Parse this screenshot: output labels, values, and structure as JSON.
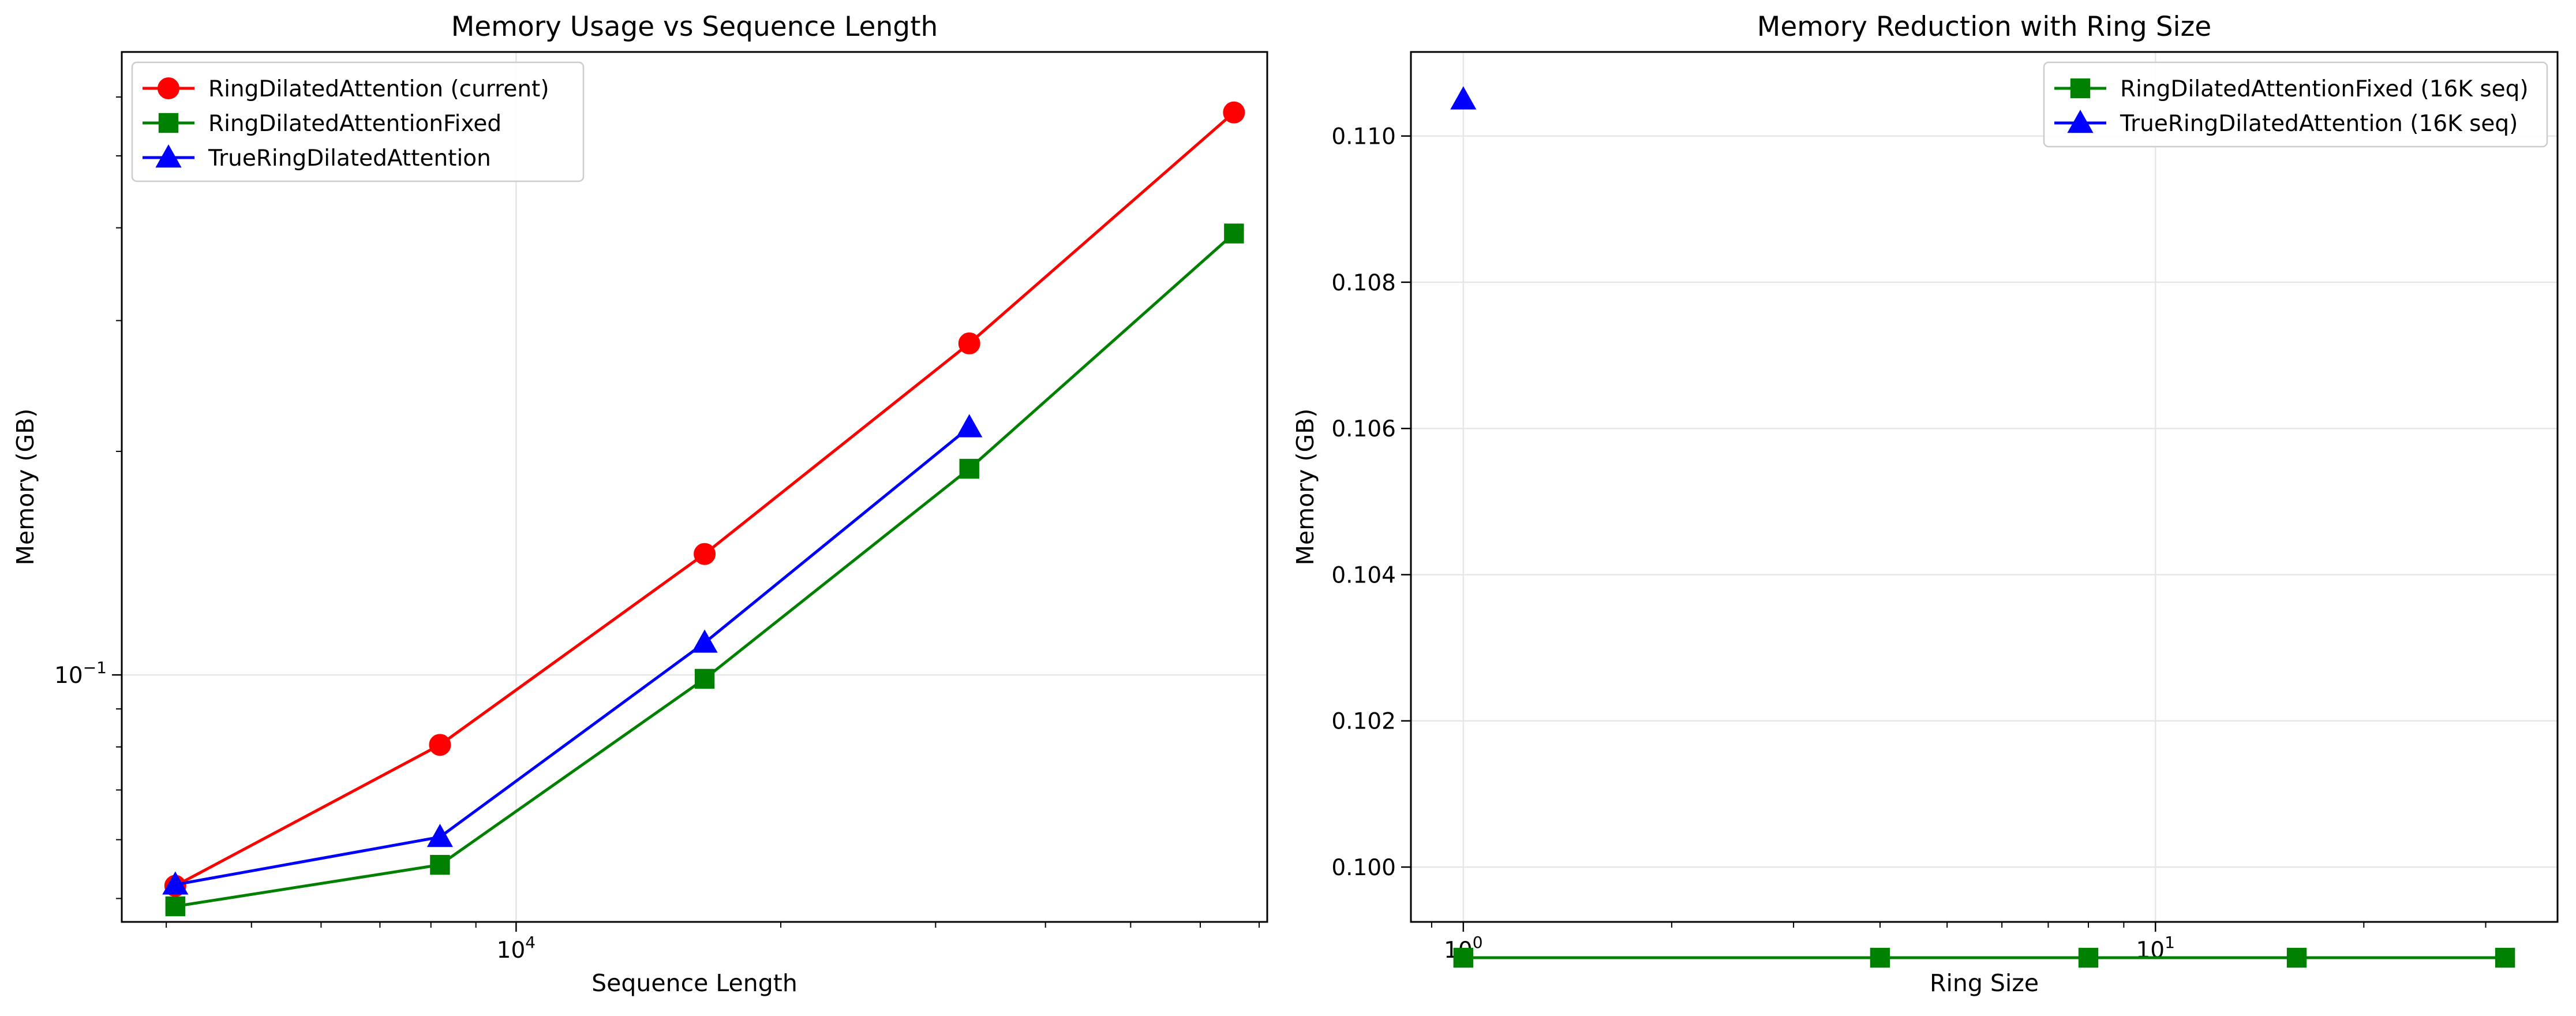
{
  "chart_data": [
    {
      "type": "line",
      "title": "Memory Usage vs Sequence Length",
      "xlabel": "Sequence Length",
      "ylabel": "Memory (GB)",
      "xscale": "log",
      "yscale": "log",
      "xlim": [
        3560,
        71500
      ],
      "ylim": [
        0.0465,
        0.69
      ],
      "xticks": [
        {
          "value": 10000,
          "label": "10",
          "exp": "4"
        }
      ],
      "yticks": [
        {
          "value": 0.1,
          "label": "10",
          "exp": "−1"
        }
      ],
      "grid": true,
      "legend_position": "upper left",
      "x": [
        4096,
        8192,
        16384,
        32768,
        65536
      ],
      "series": [
        {
          "name": "RingDilatedAttention (current)",
          "color": "#ff0000",
          "marker": "circle",
          "values": [
            0.052,
            0.0805,
            0.1455,
            0.2795,
            0.572
          ]
        },
        {
          "name": "RingDilatedAttentionFixed",
          "color": "#008000",
          "marker": "square",
          "values": [
            0.0488,
            0.0555,
            0.0988,
            0.1895,
            0.393
          ]
        },
        {
          "name": "TrueRingDilatedAttention",
          "color": "#0000ff",
          "marker": "triangle",
          "values": [
            0.0522,
            0.0605,
            0.1105,
            0.2155,
            null
          ]
        }
      ]
    },
    {
      "type": "line",
      "title": "Memory Reduction with Ring Size",
      "xlabel": "Ring Size",
      "ylabel": "Memory (GB)",
      "xscale": "log",
      "yscale": "linear",
      "xlim": [
        0.84,
        38.1
      ],
      "ylim": [
        0.09925,
        0.11115
      ],
      "xticks": [
        {
          "value": 1,
          "label": "10",
          "exp": "0"
        },
        {
          "value": 10,
          "label": "10",
          "exp": "1"
        }
      ],
      "yticks": [
        {
          "value": 0.1,
          "label": "0.100"
        },
        {
          "value": 0.102,
          "label": "0.102"
        },
        {
          "value": 0.104,
          "label": "0.104"
        },
        {
          "value": 0.106,
          "label": "0.106"
        },
        {
          "value": 0.108,
          "label": "0.108"
        },
        {
          "value": 0.11,
          "label": "0.110"
        }
      ],
      "grid": true,
      "legend_position": "upper right",
      "x": [
        1,
        4,
        8,
        16,
        32
      ],
      "series": [
        {
          "name": "RingDilatedAttentionFixed (16K seq)",
          "color": "#008000",
          "marker": "square",
          "values": [
            0.09876,
            0.09876,
            0.09876,
            0.09876,
            0.09876
          ]
        },
        {
          "name": "TrueRingDilatedAttention (16K seq)",
          "color": "#0000ff",
          "marker": "triangle",
          "values": [
            0.1105,
            null,
            null,
            null,
            null
          ]
        }
      ]
    }
  ]
}
